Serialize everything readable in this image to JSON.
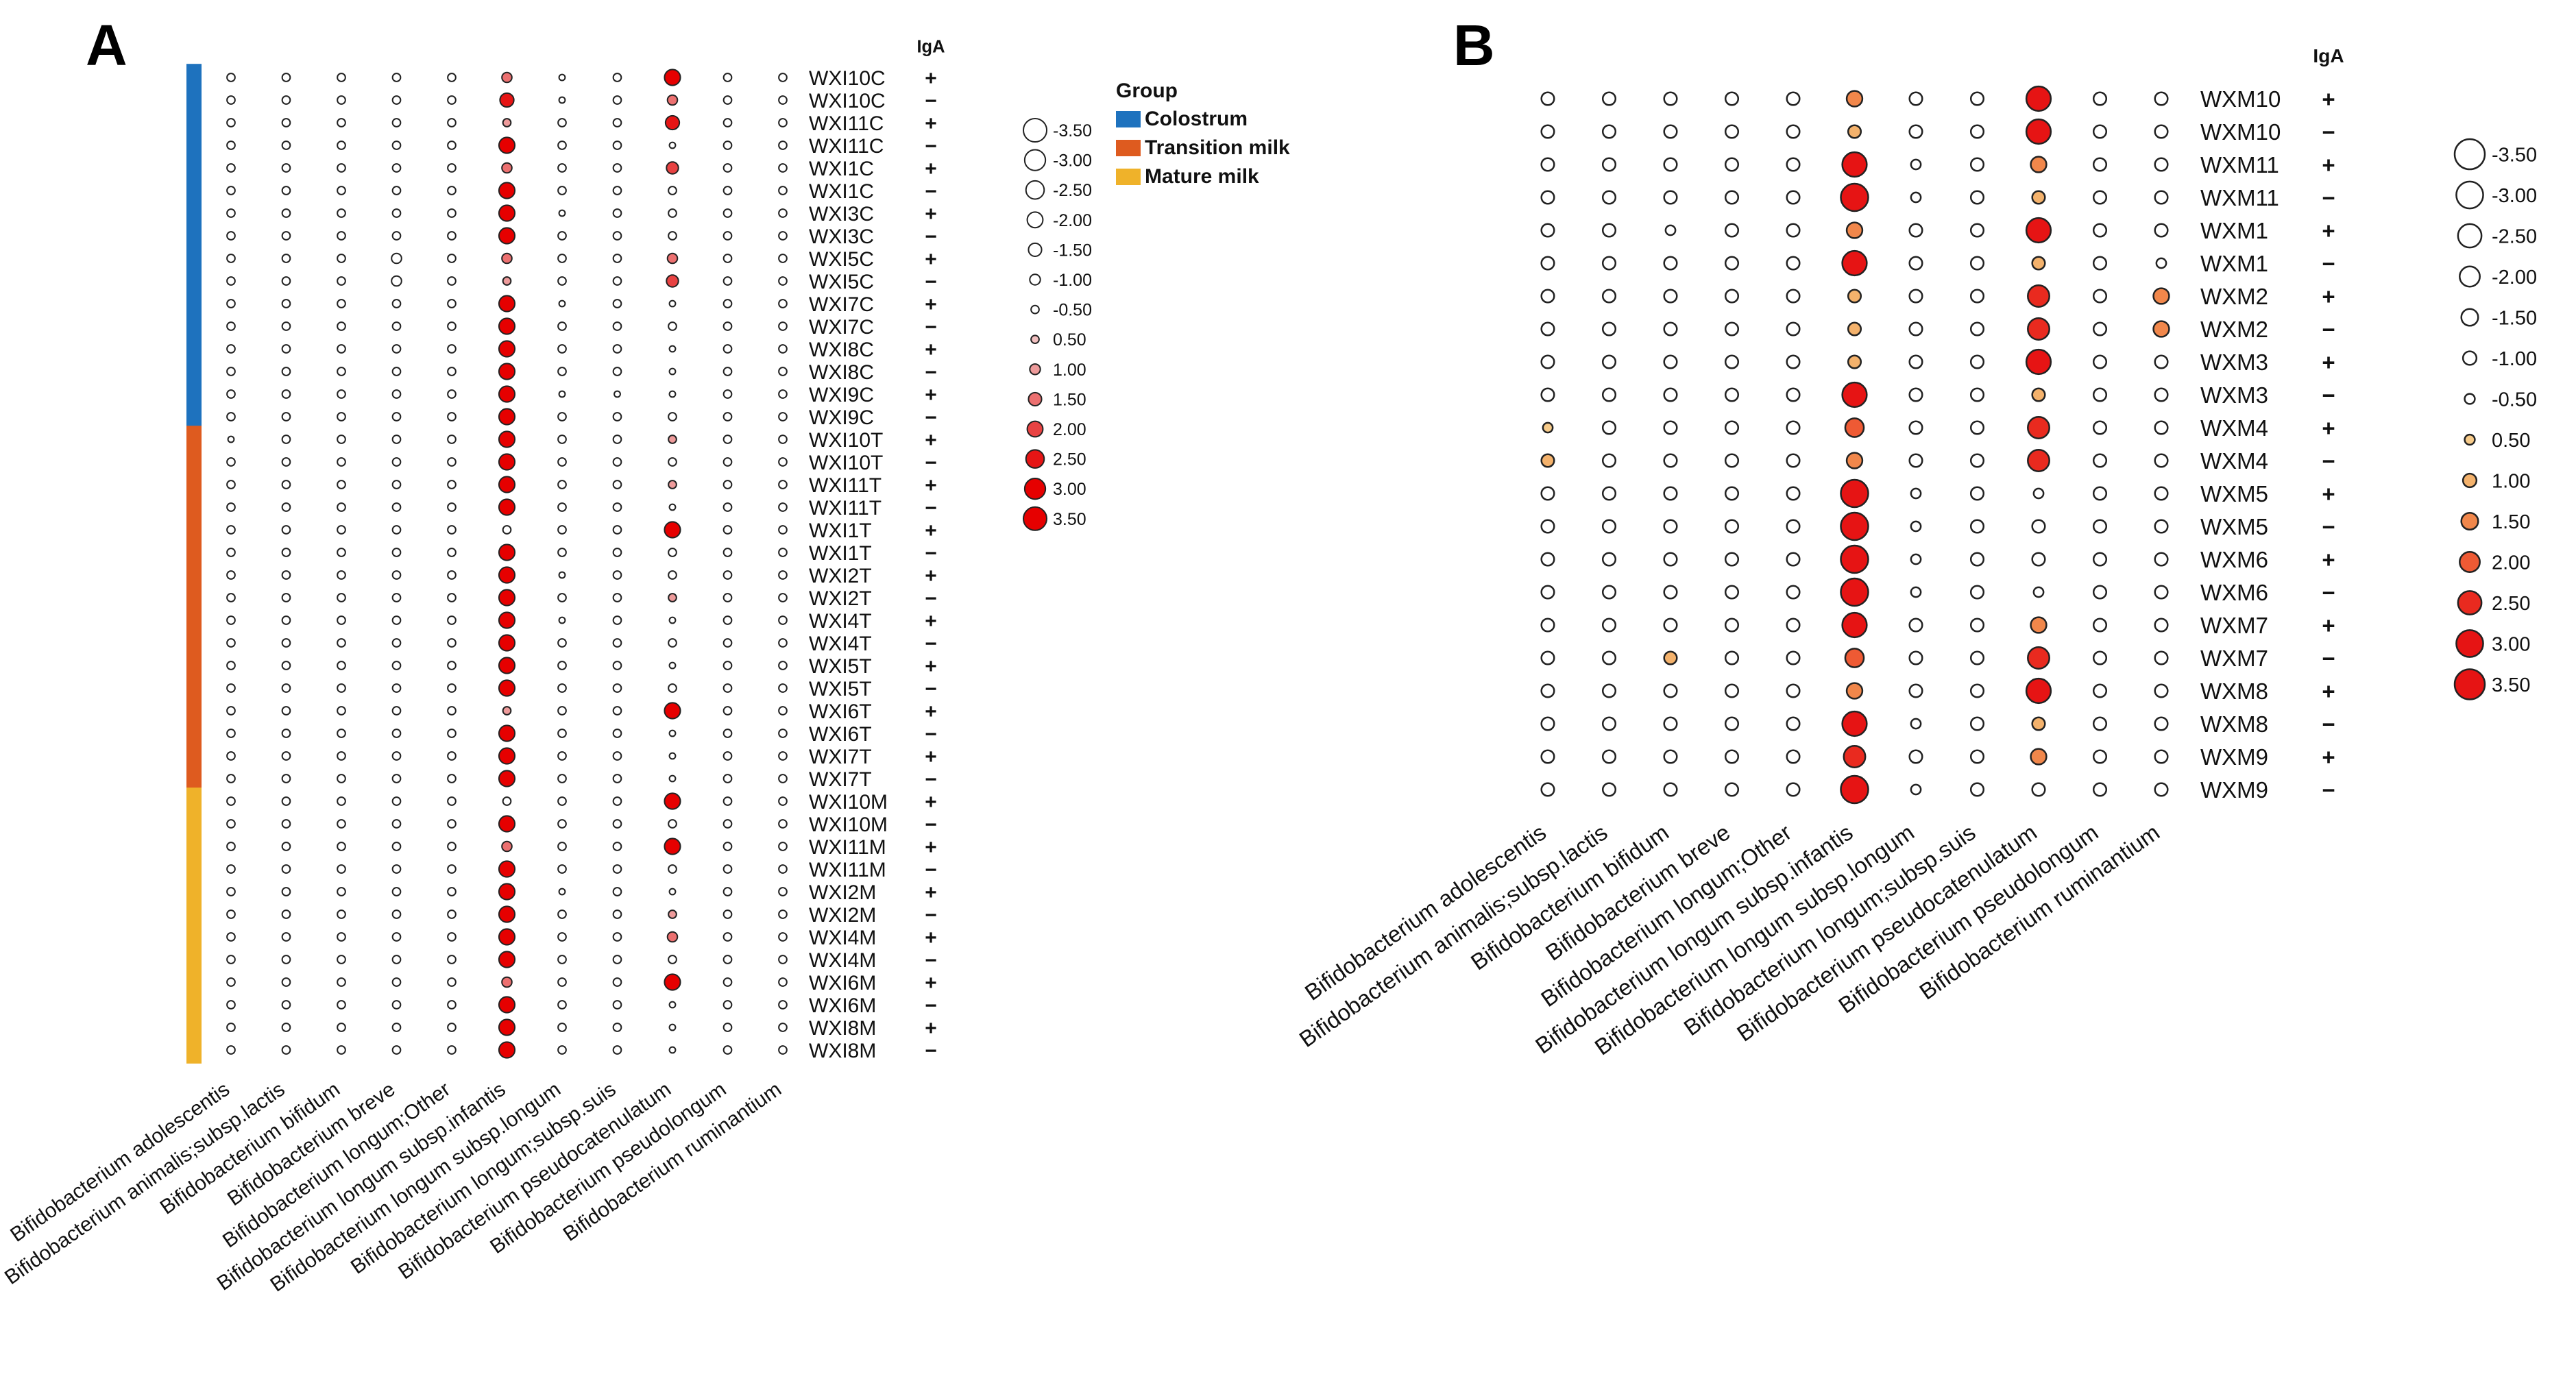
{
  "colors": {
    "colostrum": "#1E72BE",
    "transition": "#DE5B1F",
    "mature": "#EFB22A",
    "a_scale": [
      "#F2C0C0",
      "#EE9B9B",
      "#EC7070",
      "#E84242",
      "#E61515",
      "#E60000"
    ],
    "b_scale": [
      "#F7CB8A",
      "#F4B26C",
      "#F1874B",
      "#EE5A34",
      "#E92A1F",
      "#E61414"
    ]
  },
  "chart_data": [
    {
      "panel": "A",
      "type": "dot-heatmap",
      "iga_label": "IgA",
      "legend_title": "Group",
      "group_labels": [
        "Colostrum",
        "Transition milk",
        "Mature milk"
      ],
      "groups": [
        {
          "name": "Colostrum",
          "start": 0,
          "end": 15
        },
        {
          "name": "Transition milk",
          "start": 16,
          "end": 31
        },
        {
          "name": "Mature milk",
          "start": 32,
          "end": 43
        }
      ],
      "size_legend": [
        "-3.50",
        "-3.00",
        "-2.50",
        "-2.00",
        "-1.50",
        "-1.00",
        "-0.50",
        "0.50",
        "1.00",
        "1.50",
        "2.00",
        "2.50",
        "3.00",
        "3.50"
      ],
      "columns": [
        "Bifidobacterium adolescentis",
        "Bifidobacterium animalis;subsp.lactis",
        "Bifidobacterium bifidum",
        "Bifidobacterium breve",
        "Bifidobacterium longum;Other",
        "Bifidobacterium longum subsp.infantis",
        "Bifidobacterium longum subsp.longum",
        "Bifidobacterium longum;subsp.suis",
        "Bifidobacterium pseudocatenulatum",
        "Bifidobacterium pseudolongum",
        "Bifidobacterium ruminantium"
      ],
      "rows": [
        "WXI10C",
        "WXI10C",
        "WXI11C",
        "WXI11C",
        "WXI1C",
        "WXI1C",
        "WXI3C",
        "WXI3C",
        "WXI5C",
        "WXI5C",
        "WXI7C",
        "WXI7C",
        "WXI8C",
        "WXI8C",
        "WXI9C",
        "WXI9C",
        "WXI10T",
        "WXI10T",
        "WXI11T",
        "WXI11T",
        "WXI1T",
        "WXI1T",
        "WXI2T",
        "WXI2T",
        "WXI4T",
        "WXI4T",
        "WXI5T",
        "WXI5T",
        "WXI6T",
        "WXI6T",
        "WXI7T",
        "WXI7T",
        "WXI10M",
        "WXI10M",
        "WXI11M",
        "WXI11M",
        "WXI2M",
        "WXI2M",
        "WXI4M",
        "WXI4M",
        "WXI6M",
        "WXI6M",
        "WXI8M",
        "WXI8M"
      ],
      "iga": [
        "+",
        "−",
        "+",
        "−",
        "+",
        "−",
        "+",
        "−",
        "+",
        "−",
        "+",
        "−",
        "+",
        "−",
        "+",
        "−",
        "+",
        "−",
        "+",
        "−",
        "+",
        "−",
        "+",
        "−",
        "+",
        "−",
        "+",
        "−",
        "+",
        "−",
        "+",
        "−",
        "+",
        "−",
        "+",
        "−",
        "+",
        "−",
        "+",
        "−",
        "+",
        "−",
        "+",
        "−"
      ],
      "values": [
        [
          -1,
          -1,
          -1,
          -1,
          -1,
          1.5,
          -0.5,
          -1,
          3.0,
          -1,
          -1
        ],
        [
          -1,
          -1,
          -1,
          -1,
          -1,
          2.5,
          -0.5,
          -1,
          1.5,
          -1,
          -1
        ],
        [
          -1,
          -1,
          -1,
          -1,
          -1,
          1.0,
          -1,
          -1,
          2.5,
          -1,
          -1
        ],
        [
          -1,
          -1,
          -1,
          -1,
          -1,
          3.0,
          -1,
          -1,
          -0.5,
          -1,
          -1
        ],
        [
          -1,
          -1,
          -1,
          -1,
          -1,
          1.5,
          -1,
          -1,
          2.0,
          -1,
          -1
        ],
        [
          -1,
          -1,
          -1,
          -1,
          -1,
          3.0,
          -1,
          -1,
          -1,
          -1,
          -1
        ],
        [
          -1,
          -1,
          -1,
          -1,
          -1,
          3.0,
          -0.5,
          -1,
          -1,
          -1,
          -1
        ],
        [
          -1,
          -1,
          -1,
          -1,
          -1,
          3.0,
          -1,
          -1,
          -1,
          -1,
          -1
        ],
        [
          -1,
          -1,
          -1,
          -1.5,
          -1,
          1.5,
          -1,
          -1,
          1.5,
          -1,
          -1
        ],
        [
          -1,
          -1,
          -1,
          -1.5,
          -1,
          1.0,
          -1,
          -1,
          2.0,
          -1,
          -1
        ],
        [
          -1,
          -1,
          -1,
          -1,
          -1,
          3.0,
          -0.5,
          -1,
          -0.5,
          -1,
          -1
        ],
        [
          -1,
          -1,
          -1,
          -1,
          -1,
          3.0,
          -1,
          -1,
          -1,
          -1,
          -1
        ],
        [
          -1,
          -1,
          -1,
          -1,
          -1,
          3.0,
          -1,
          -1,
          -0.5,
          -1,
          -1
        ],
        [
          -1,
          -1,
          -1,
          -1,
          -1,
          3.0,
          -1,
          -1,
          -0.5,
          -1,
          -1
        ],
        [
          -1,
          -1,
          -1,
          -1,
          -1,
          3.0,
          -0.5,
          -0.5,
          -0.5,
          -1,
          -1
        ],
        [
          -1,
          -1,
          -1,
          -1,
          -1,
          3.0,
          -1,
          -1,
          -1,
          -1,
          -1
        ],
        [
          -0.5,
          -1,
          -1,
          -1,
          -1,
          3.0,
          -1,
          -1,
          1.0,
          -1,
          -1
        ],
        [
          -1,
          -1,
          -1,
          -1,
          -1,
          3.0,
          -1,
          -1,
          -1,
          -1,
          -1
        ],
        [
          -1,
          -1,
          -1,
          -1,
          -1,
          3.0,
          -1,
          -1,
          1.0,
          -1,
          -1
        ],
        [
          -1,
          -1,
          -1,
          -1,
          -1,
          3.0,
          -1,
          -1,
          -0.5,
          -1,
          -1
        ],
        [
          -1,
          -1,
          -1,
          -1,
          -1,
          -1,
          -1,
          -1,
          3.0,
          -1,
          -1
        ],
        [
          -1,
          -1,
          -1,
          -1,
          -1,
          3.0,
          -1,
          -1,
          -1,
          -1,
          -1
        ],
        [
          -1,
          -1,
          -1,
          -1,
          -1,
          3.0,
          -0.5,
          -1,
          -1,
          -1,
          -1
        ],
        [
          -1,
          -1,
          -1,
          -1,
          -1,
          3.0,
          -1,
          -1,
          1.0,
          -1,
          -1
        ],
        [
          -1,
          -1,
          -1,
          -1,
          -1,
          3.0,
          -0.5,
          -1,
          -0.5,
          -1,
          -1
        ],
        [
          -1,
          -1,
          -1,
          -1,
          -1,
          3.0,
          -1,
          -1,
          -1,
          -1,
          -1
        ],
        [
          -1,
          -1,
          -1,
          -1,
          -1,
          3.0,
          -1,
          -1,
          -0.5,
          -1,
          -1
        ],
        [
          -1,
          -1,
          -1,
          -1,
          -1,
          3.0,
          -1,
          -1,
          -1,
          -1,
          -1
        ],
        [
          -1,
          -1,
          -1,
          -1,
          -1,
          1.0,
          -1,
          -1,
          3.0,
          -1,
          -1
        ],
        [
          -1,
          -1,
          -1,
          -1,
          -1,
          3.0,
          -1,
          -1,
          -0.5,
          -1,
          -1
        ],
        [
          -1,
          -1,
          -1,
          -1,
          -1,
          3.0,
          -1,
          -1,
          -0.5,
          -1,
          -1
        ],
        [
          -1,
          -1,
          -1,
          -1,
          -1,
          3.0,
          -1,
          -1,
          -0.5,
          -1,
          -1
        ],
        [
          -1,
          -1,
          -1,
          -1,
          -1,
          -1,
          -1,
          -1,
          3.0,
          -1,
          -1
        ],
        [
          -1,
          -1,
          -1,
          -1,
          -1,
          3.0,
          -1,
          -1,
          -1,
          -1,
          -1
        ],
        [
          -1,
          -1,
          -1,
          -1,
          -1,
          1.5,
          -1,
          -1,
          3.0,
          -1,
          -1
        ],
        [
          -1,
          -1,
          -1,
          -1,
          -1,
          3.0,
          -1,
          -1,
          -1,
          -1,
          -1
        ],
        [
          -1,
          -1,
          -1,
          -1,
          -1,
          3.0,
          -0.5,
          -1,
          -0.5,
          -1,
          -1
        ],
        [
          -1,
          -1,
          -1,
          -1,
          -1,
          3.0,
          -1,
          -1,
          1.0,
          -1,
          -1
        ],
        [
          -1,
          -1,
          -1,
          -1,
          -1,
          3.0,
          -1,
          -1,
          1.5,
          -1,
          -1
        ],
        [
          -1,
          -1,
          -1,
          -1,
          -1,
          3.0,
          -1,
          -1,
          -1,
          -1,
          -1
        ],
        [
          -1,
          -1,
          -1,
          -1,
          -1,
          1.5,
          -1,
          -1,
          3.0,
          -1,
          -1
        ],
        [
          -1,
          -1,
          -1,
          -1,
          -1,
          3.0,
          -1,
          -1,
          -0.5,
          -1,
          -1
        ],
        [
          -1,
          -1,
          -1,
          -1,
          -1,
          3.0,
          -1,
          -1,
          -0.5,
          -1,
          -1
        ],
        [
          -1,
          -1,
          -1,
          -1,
          -1,
          3.0,
          -1,
          -1,
          -0.5,
          -1,
          -1
        ]
      ]
    },
    {
      "panel": "B",
      "type": "dot-heatmap",
      "iga_label": "IgA",
      "size_legend": [
        "-3.50",
        "-3.00",
        "-2.50",
        "-2.00",
        "-1.50",
        "-1.00",
        "-0.50",
        "0.50",
        "1.00",
        "1.50",
        "2.00",
        "2.50",
        "3.00",
        "3.50"
      ],
      "columns": [
        "Bifidobacterium adolescentis",
        "Bifidobacterium animalis;subsp.lactis",
        "Bifidobacterium bifidum",
        "Bifidobacterium breve",
        "Bifidobacterium longum;Other",
        "Bifidobacterium longum subsp.infantis",
        "Bifidobacterium longum subsp.longum",
        "Bifidobacterium longum;subsp.suis",
        "Bifidobacterium pseudocatenulatum",
        "Bifidobacterium pseudolongum",
        "Bifidobacterium ruminantium"
      ],
      "rows": [
        "WXM10",
        "WXM10",
        "WXM11",
        "WXM11",
        "WXM1",
        "WXM1",
        "WXM2",
        "WXM2",
        "WXM3",
        "WXM3",
        "WXM4",
        "WXM4",
        "WXM5",
        "WXM5",
        "WXM6",
        "WXM6",
        "WXM7",
        "WXM7",
        "WXM8",
        "WXM8",
        "WXM9",
        "WXM9"
      ],
      "iga": [
        "+",
        "−",
        "+",
        "−",
        "+",
        "−",
        "+",
        "−",
        "+",
        "−",
        "+",
        "−",
        "+",
        "−",
        "+",
        "−",
        "+",
        "−",
        "+",
        "−",
        "+",
        "−"
      ],
      "values": [
        [
          -1,
          -1,
          -1,
          -1,
          -1,
          1.5,
          -1,
          -1,
          3.0,
          -1,
          -1
        ],
        [
          -1,
          -1,
          -1,
          -1,
          -1,
          1.0,
          -1,
          -1,
          3.0,
          -1,
          -1
        ],
        [
          -1,
          -1,
          -1,
          -1,
          -1,
          3.0,
          -0.5,
          -1,
          1.5,
          -1,
          -1
        ],
        [
          -1,
          -1,
          -1,
          -1,
          -1,
          3.5,
          -0.5,
          -1,
          1.0,
          -1,
          -1
        ],
        [
          -1,
          -1,
          -0.5,
          -1,
          -1,
          1.5,
          -1,
          -1,
          3.0,
          -1,
          -1
        ],
        [
          -1,
          -1,
          -1,
          -1,
          -1,
          3.0,
          -1,
          -1,
          1.0,
          -1,
          -0.5
        ],
        [
          -1,
          -1,
          -1,
          -1,
          -1,
          1.0,
          -1,
          -1,
          2.5,
          -1,
          1.5
        ],
        [
          -1,
          -1,
          -1,
          -1,
          -1,
          1.0,
          -1,
          -1,
          2.5,
          -1,
          1.5
        ],
        [
          -1,
          -1,
          -1,
          -1,
          -1,
          1.0,
          -1,
          -1,
          3.0,
          -1,
          -1
        ],
        [
          -1,
          -1,
          -1,
          -1,
          -1,
          3.0,
          -1,
          -1,
          1.0,
          -1,
          -1
        ],
        [
          0.5,
          -1,
          -1,
          -1,
          -1,
          2.0,
          -1,
          -1,
          2.5,
          -1,
          -1
        ],
        [
          1.0,
          -1,
          -1,
          -1,
          -1,
          1.5,
          -1,
          -1,
          2.5,
          -1,
          -1
        ],
        [
          -1,
          -1,
          -1,
          -1,
          -1,
          3.5,
          -0.5,
          -1,
          -0.5,
          -1,
          -1
        ],
        [
          -1,
          -1,
          -1,
          -1,
          -1,
          3.5,
          -0.5,
          -1,
          -1,
          -1,
          -1
        ],
        [
          -1,
          -1,
          -1,
          -1,
          -1,
          3.5,
          -0.5,
          -1,
          -1,
          -1,
          -1
        ],
        [
          -1,
          -1,
          -1,
          -1,
          -1,
          3.5,
          -0.5,
          -1,
          -0.5,
          -1,
          -1
        ],
        [
          -1,
          -1,
          -1,
          -1,
          -1,
          3.0,
          -1,
          -1,
          1.5,
          -1,
          -1
        ],
        [
          -1,
          -1,
          1.0,
          -1,
          -1,
          2.0,
          -1,
          -1,
          2.5,
          -1,
          -1
        ],
        [
          -1,
          -1,
          -1,
          -1,
          -1,
          1.5,
          -1,
          -1,
          3.0,
          -1,
          -1
        ],
        [
          -1,
          -1,
          -1,
          -1,
          -1,
          3.0,
          -0.5,
          -1,
          1.0,
          -1,
          -1
        ],
        [
          -1,
          -1,
          -1,
          -1,
          -1,
          2.5,
          -1,
          -1,
          1.5,
          -1,
          -1
        ],
        [
          -1,
          -1,
          -1,
          -1,
          -1,
          3.5,
          -0.5,
          -1,
          -1,
          -1,
          -1
        ]
      ]
    }
  ],
  "panel_labels": [
    "A",
    "B"
  ]
}
